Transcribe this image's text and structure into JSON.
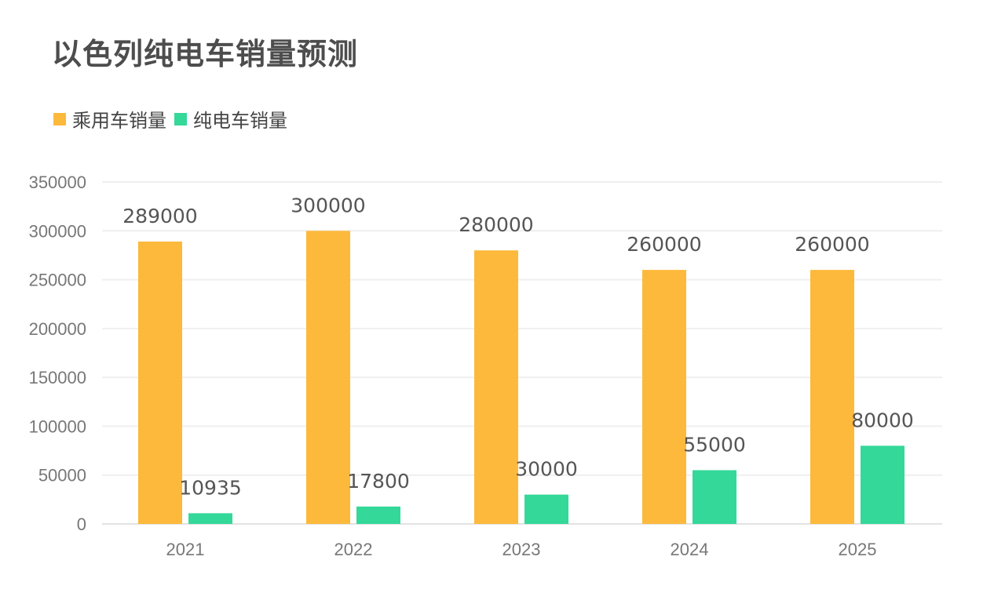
{
  "chart_data": {
    "type": "bar",
    "title": "以色列纯电车销量预测",
    "categories": [
      "2021",
      "2022",
      "2023",
      "2024",
      "2025"
    ],
    "series": [
      {
        "name": "乘用车销量",
        "color": "#FDB93B",
        "values": [
          289000,
          300000,
          280000,
          260000,
          260000
        ]
      },
      {
        "name": "纯电车销量",
        "color": "#34D898",
        "values": [
          10935,
          17800,
          30000,
          55000,
          80000
        ]
      }
    ],
    "ylim": [
      0,
      350000
    ],
    "yticks": [
      0,
      50000,
      100000,
      150000,
      200000,
      250000,
      300000,
      350000
    ],
    "xlabel": "",
    "ylabel": "",
    "grid": true,
    "legend": "top-left"
  }
}
